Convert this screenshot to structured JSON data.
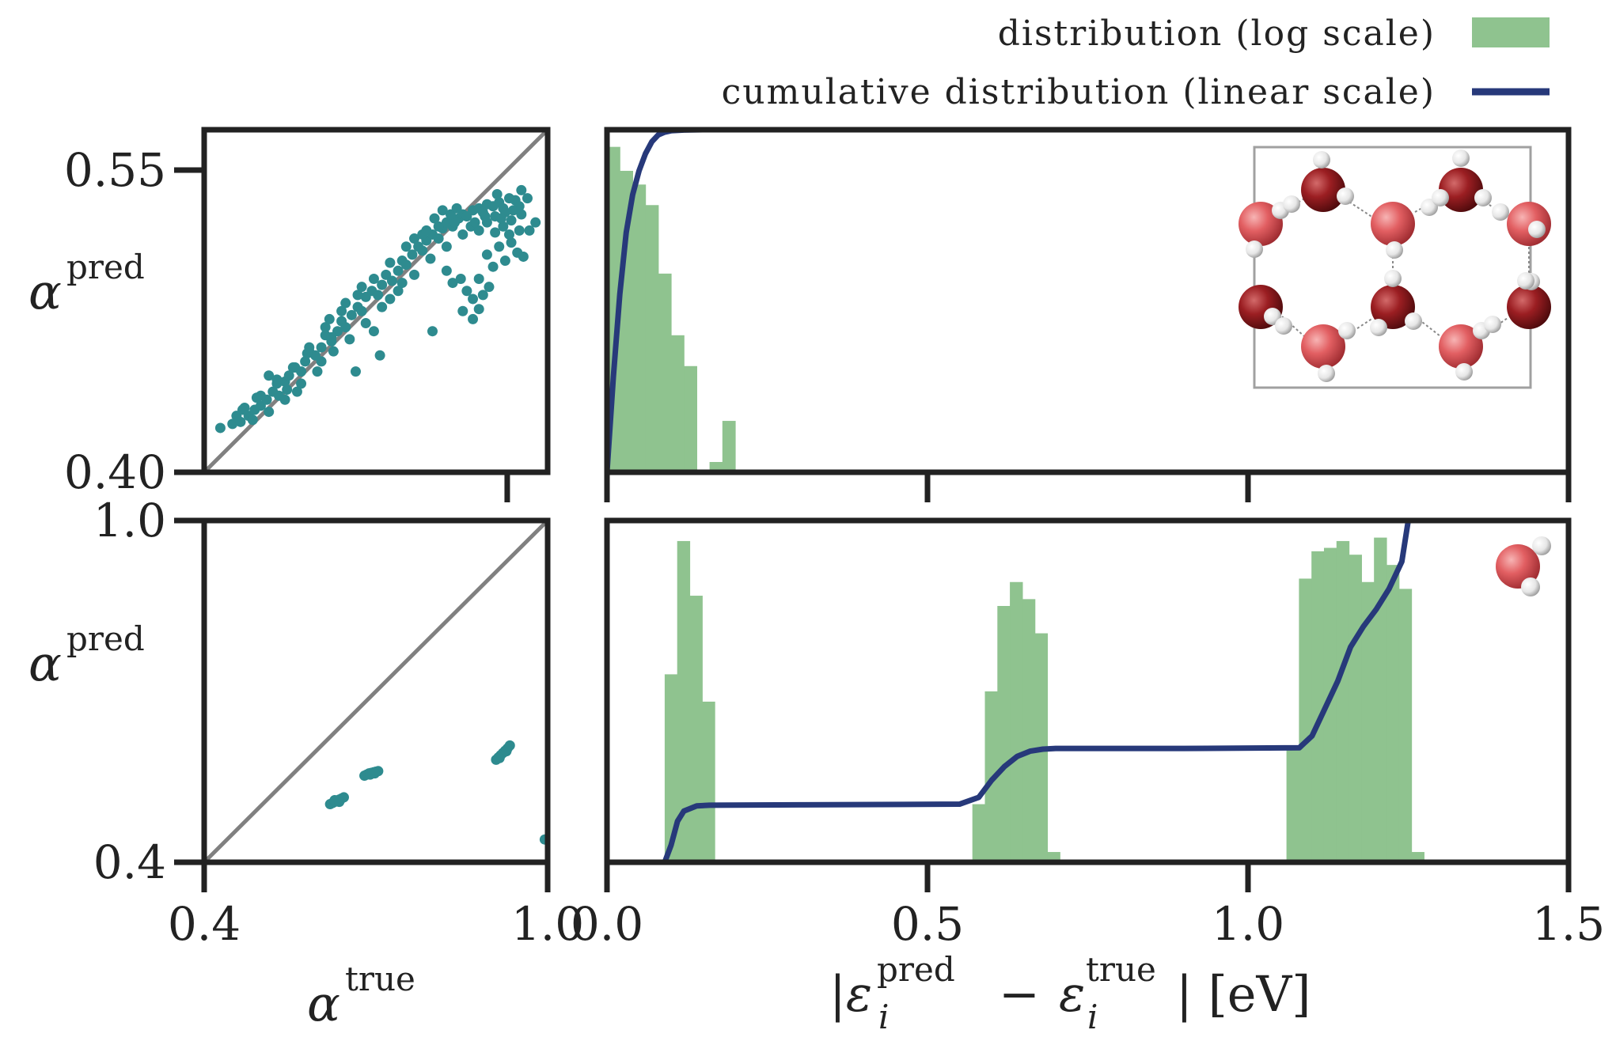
{
  "legend": {
    "hist_label": "distribution (log scale)",
    "cdf_label": "cumulative distribution (linear scale)",
    "hist_color": "#8fc38f",
    "cdf_color": "#27397a"
  },
  "labels": {
    "alpha": "α",
    "pred": "pred",
    "true": "true",
    "eps_left": "|ε",
    "eps_i": "i",
    "minus": "−",
    "eps_mid": "ε",
    "eps_right": "| [eV]"
  },
  "chart_data": [
    {
      "type": "scatter",
      "name": "top-left",
      "xlim": [
        0.4,
        0.57
      ],
      "ylim": [
        0.4,
        0.57
      ],
      "yticks": [
        "0.55",
        "0.40"
      ],
      "ytick_values": [
        0.55,
        0.4
      ],
      "xtick_values": [
        0.55
      ],
      "diagonal": true,
      "color": "#2e8b8f",
      "points": [
        [
          0.408,
          0.422
        ],
        [
          0.414,
          0.424
        ],
        [
          0.418,
          0.425
        ],
        [
          0.422,
          0.428
        ],
        [
          0.425,
          0.431
        ],
        [
          0.428,
          0.433
        ],
        [
          0.431,
          0.436
        ],
        [
          0.434,
          0.44
        ],
        [
          0.437,
          0.438
        ],
        [
          0.44,
          0.445
        ],
        [
          0.442,
          0.448
        ],
        [
          0.445,
          0.452
        ],
        [
          0.448,
          0.45
        ],
        [
          0.45,
          0.455
        ],
        [
          0.452,
          0.46
        ],
        [
          0.455,
          0.458
        ],
        [
          0.458,
          0.462
        ],
        [
          0.46,
          0.468
        ],
        [
          0.463,
          0.465
        ],
        [
          0.466,
          0.47
        ],
        [
          0.468,
          0.475
        ],
        [
          0.47,
          0.472
        ],
        [
          0.473,
          0.478
        ],
        [
          0.476,
          0.482
        ],
        [
          0.478,
          0.48
        ],
        [
          0.48,
          0.487
        ],
        [
          0.483,
          0.49
        ],
        [
          0.486,
          0.488
        ],
        [
          0.488,
          0.493
        ],
        [
          0.49,
          0.498
        ],
        [
          0.493,
          0.495
        ],
        [
          0.496,
          0.5
        ],
        [
          0.498,
          0.505
        ],
        [
          0.5,
          0.503
        ],
        [
          0.503,
          0.508
        ],
        [
          0.506,
          0.512
        ],
        [
          0.508,
          0.51
        ],
        [
          0.51,
          0.515
        ],
        [
          0.513,
          0.518
        ],
        [
          0.516,
          0.516
        ],
        [
          0.518,
          0.521
        ],
        [
          0.52,
          0.524
        ],
        [
          0.523,
          0.522
        ],
        [
          0.526,
          0.526
        ],
        [
          0.528,
          0.528
        ],
        [
          0.53,
          0.527
        ],
        [
          0.533,
          0.53
        ],
        [
          0.536,
          0.531
        ],
        [
          0.538,
          0.529
        ],
        [
          0.54,
          0.533
        ],
        [
          0.543,
          0.532
        ],
        [
          0.546,
          0.534
        ],
        [
          0.548,
          0.531
        ],
        [
          0.551,
          0.536
        ],
        [
          0.554,
          0.535
        ],
        [
          0.556,
          0.532
        ],
        [
          0.416,
          0.428
        ],
        [
          0.42,
          0.432
        ],
        [
          0.424,
          0.426
        ],
        [
          0.428,
          0.438
        ],
        [
          0.432,
          0.43
        ],
        [
          0.436,
          0.444
        ],
        [
          0.44,
          0.436
        ],
        [
          0.444,
          0.452
        ],
        [
          0.448,
          0.444
        ],
        [
          0.452,
          0.462
        ],
        [
          0.456,
          0.45
        ],
        [
          0.46,
          0.472
        ],
        [
          0.464,
          0.46
        ],
        [
          0.468,
          0.48
        ],
        [
          0.472,
          0.466
        ],
        [
          0.476,
          0.488
        ],
        [
          0.48,
          0.474
        ],
        [
          0.484,
          0.496
        ],
        [
          0.488,
          0.482
        ],
        [
          0.492,
          0.504
        ],
        [
          0.496,
          0.49
        ],
        [
          0.5,
          0.512
        ],
        [
          0.504,
          0.498
        ],
        [
          0.508,
          0.518
        ],
        [
          0.512,
          0.506
        ],
        [
          0.516,
          0.522
        ],
        [
          0.52,
          0.512
        ],
        [
          0.524,
          0.524
        ],
        [
          0.528,
          0.518
        ],
        [
          0.532,
          0.522
        ],
        [
          0.536,
          0.52
        ],
        [
          0.54,
          0.524
        ],
        [
          0.544,
          0.519
        ],
        [
          0.548,
          0.522
        ],
        [
          0.552,
          0.525
        ],
        [
          0.556,
          0.52
        ],
        [
          0.432,
          0.448
        ],
        [
          0.446,
          0.44
        ],
        [
          0.458,
          0.455
        ],
        [
          0.462,
          0.476
        ],
        [
          0.47,
          0.484
        ],
        [
          0.478,
          0.492
        ],
        [
          0.484,
          0.47
        ],
        [
          0.492,
          0.486
        ],
        [
          0.498,
          0.494
        ],
        [
          0.504,
          0.516
        ],
        [
          0.51,
          0.52
        ],
        [
          0.514,
          0.526
        ],
        [
          0.518,
          0.53
        ],
        [
          0.522,
          0.528
        ],
        [
          0.525,
          0.531
        ],
        [
          0.534,
          0.524
        ],
        [
          0.539,
          0.527
        ],
        [
          0.544,
          0.527
        ],
        [
          0.549,
          0.529
        ],
        [
          0.553,
          0.53
        ],
        [
          0.557,
          0.528
        ],
        [
          0.54,
          0.508
        ],
        [
          0.543,
          0.502
        ],
        [
          0.546,
          0.512
        ],
        [
          0.549,
          0.505
        ],
        [
          0.552,
          0.514
        ],
        [
          0.555,
          0.509
        ],
        [
          0.558,
          0.507
        ],
        [
          0.561,
          0.52
        ],
        [
          0.564,
          0.524
        ],
        [
          0.56,
          0.536
        ],
        [
          0.557,
          0.54
        ],
        [
          0.545,
          0.538
        ],
        [
          0.547,
          0.526
        ],
        [
          0.551,
          0.518
        ],
        [
          0.52,
          0.5
        ],
        [
          0.523,
          0.494
        ],
        [
          0.527,
          0.496
        ],
        [
          0.53,
          0.49
        ],
        [
          0.533,
          0.486
        ],
        [
          0.536,
          0.496
        ],
        [
          0.538,
          0.488
        ],
        [
          0.541,
          0.492
        ],
        [
          0.536,
          0.481
        ],
        [
          0.533,
          0.476
        ],
        [
          0.528,
          0.48
        ],
        [
          0.513,
          0.47
        ],
        [
          0.487,
          0.458
        ],
        [
          0.475,
          0.45
        ],
        [
          0.463,
          0.467
        ],
        [
          0.451,
          0.459
        ],
        [
          0.441,
          0.441
        ],
        [
          0.436,
          0.446
        ],
        [
          0.426,
          0.437
        ],
        [
          0.419,
          0.431
        ]
      ]
    },
    {
      "type": "bar",
      "name": "top-right",
      "xlim": [
        0.0,
        1.5
      ],
      "ylim": [
        0.0,
        1.0
      ],
      "xtick_values": [
        0.0,
        0.5,
        1.0,
        1.5
      ],
      "bin_width": 0.02,
      "hist_x": [
        0.0,
        0.02,
        0.04,
        0.06,
        0.08,
        0.1,
        0.12,
        0.14,
        0.16,
        0.18
      ],
      "hist_heights": [
        0.95,
        0.88,
        0.84,
        0.78,
        0.58,
        0.4,
        0.31,
        0.0,
        0.03,
        0.15
      ],
      "cdf_x": [
        0.0,
        0.01,
        0.02,
        0.03,
        0.04,
        0.05,
        0.06,
        0.07,
        0.08,
        0.09,
        0.1,
        0.12,
        0.15,
        0.18
      ],
      "cdf_y": [
        0.0,
        0.28,
        0.52,
        0.7,
        0.81,
        0.88,
        0.93,
        0.965,
        0.985,
        0.993,
        0.997,
        0.999,
        1.0,
        1.0
      ],
      "inset": "water-ice-cell"
    },
    {
      "type": "scatter",
      "name": "bottom-left",
      "xlim": [
        0.4,
        1.0
      ],
      "ylim": [
        0.4,
        1.0
      ],
      "yticks": [
        "1.0",
        "0.4"
      ],
      "ytick_values": [
        1.0,
        0.4
      ],
      "xticks": [
        "0.4",
        "1.0"
      ],
      "xtick_values": [
        0.4,
        1.0
      ],
      "diagonal": true,
      "color": "#2e8b8f",
      "points": [
        [
          0.62,
          0.502
        ],
        [
          0.624,
          0.504
        ],
        [
          0.628,
          0.506
        ],
        [
          0.632,
          0.508
        ],
        [
          0.636,
          0.51
        ],
        [
          0.64,
          0.512
        ],
        [
          0.644,
          0.514
        ],
        [
          0.628,
          0.509
        ],
        [
          0.636,
          0.506
        ],
        [
          0.68,
          0.552
        ],
        [
          0.684,
          0.554
        ],
        [
          0.688,
          0.556
        ],
        [
          0.692,
          0.557
        ],
        [
          0.696,
          0.558
        ],
        [
          0.7,
          0.559
        ],
        [
          0.704,
          0.56
        ],
        [
          0.69,
          0.554
        ],
        [
          0.698,
          0.556
        ],
        [
          0.91,
          0.58
        ],
        [
          0.914,
          0.584
        ],
        [
          0.918,
          0.588
        ],
        [
          0.922,
          0.592
        ],
        [
          0.926,
          0.596
        ],
        [
          0.93,
          0.6
        ],
        [
          0.934,
          0.605
        ],
        [
          0.916,
          0.583
        ],
        [
          0.928,
          0.595
        ],
        [
          0.995,
          0.44
        ]
      ]
    },
    {
      "type": "bar",
      "name": "bottom-right",
      "xlim": [
        0.0,
        1.5
      ],
      "ylim": [
        0.0,
        1.0
      ],
      "xticks": [
        "0.0",
        "0.5",
        "1.0",
        "1.5"
      ],
      "xtick_values": [
        0.0,
        0.5,
        1.0,
        1.5
      ],
      "bin_width": 0.0195,
      "hist_x": [
        0.09,
        0.1095,
        0.129,
        0.1485,
        0.57,
        0.5895,
        0.609,
        0.6285,
        0.648,
        0.6675,
        0.687,
        1.06,
        1.0795,
        1.099,
        1.1185,
        1.138,
        1.1575,
        1.177,
        1.1965,
        1.216,
        1.2355,
        1.255
      ],
      "hist_heights": [
        0.55,
        0.94,
        0.78,
        0.47,
        0.17,
        0.5,
        0.75,
        0.82,
        0.77,
        0.67,
        0.03,
        0.33,
        0.83,
        0.91,
        0.92,
        0.94,
        0.9,
        0.82,
        0.95,
        0.87,
        0.8,
        0.03
      ],
      "cdf_x": [
        0.0,
        0.09,
        0.1,
        0.11,
        0.12,
        0.14,
        0.16,
        0.3,
        0.55,
        0.58,
        0.6,
        0.62,
        0.64,
        0.66,
        0.68,
        0.7,
        0.9,
        1.08,
        1.1,
        1.12,
        1.14,
        1.16,
        1.18,
        1.2,
        1.22,
        1.24,
        1.25,
        1.5
      ],
      "cdf_y": [
        0.0,
        0.0,
        0.05,
        0.12,
        0.15,
        0.165,
        0.167,
        0.168,
        0.17,
        0.19,
        0.24,
        0.28,
        0.31,
        0.325,
        0.331,
        0.333,
        0.333,
        0.335,
        0.37,
        0.45,
        0.53,
        0.63,
        0.69,
        0.74,
        0.8,
        0.88,
        1.0,
        1.0
      ],
      "inset": "single-water-molecule"
    }
  ]
}
